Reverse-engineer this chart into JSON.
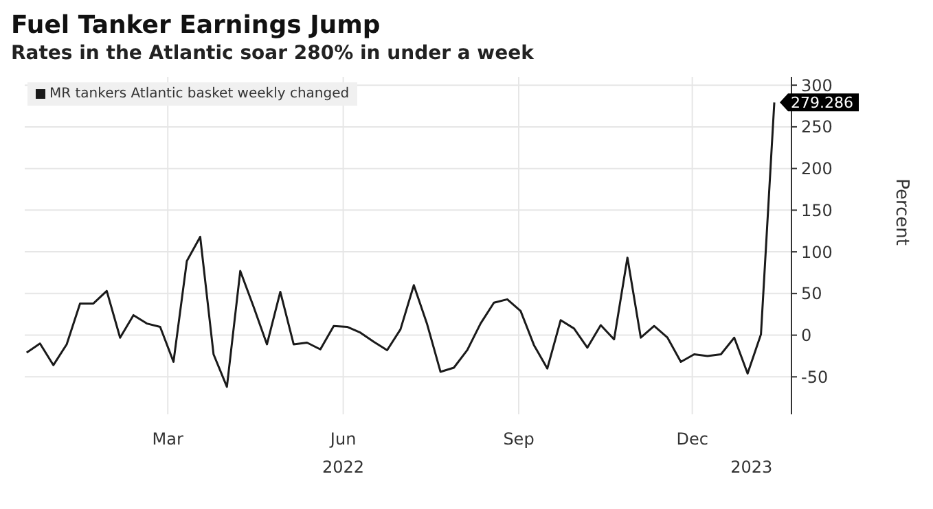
{
  "chart_data": {
    "type": "line",
    "title": "Fuel Tanker Earnings Jump",
    "subtitle": "Rates in the Atlantic soar 280% in under a week",
    "ylabel": "Percent",
    "x": [
      "2021-12-17",
      "2021-12-24",
      "2021-12-31",
      "2022-01-07",
      "2022-01-14",
      "2022-01-21",
      "2022-01-28",
      "2022-02-04",
      "2022-02-11",
      "2022-02-18",
      "2022-02-25",
      "2022-03-04",
      "2022-03-11",
      "2022-03-18",
      "2022-03-25",
      "2022-04-01",
      "2022-04-08",
      "2022-04-15",
      "2022-04-22",
      "2022-04-29",
      "2022-05-06",
      "2022-05-13",
      "2022-05-20",
      "2022-05-27",
      "2022-06-03",
      "2022-06-10",
      "2022-06-17",
      "2022-06-24",
      "2022-07-01",
      "2022-07-08",
      "2022-07-15",
      "2022-07-22",
      "2022-07-29",
      "2022-08-05",
      "2022-08-12",
      "2022-08-19",
      "2022-08-26",
      "2022-09-02",
      "2022-09-09",
      "2022-09-16",
      "2022-09-23",
      "2022-09-30",
      "2022-10-07",
      "2022-10-14",
      "2022-10-21",
      "2022-10-28",
      "2022-11-04",
      "2022-11-11",
      "2022-11-18",
      "2022-11-25",
      "2022-12-02",
      "2022-12-09",
      "2022-12-16",
      "2022-12-23",
      "2022-12-30",
      "2023-01-06",
      "2023-01-13"
    ],
    "series": [
      {
        "name": "MR tankers Atlantic basket weekly changed",
        "color": "#1a1a1a",
        "values": [
          -21,
          -10,
          -36,
          -11,
          38,
          38,
          53,
          -3,
          24,
          14,
          10,
          -32,
          89,
          118,
          -23,
          -62,
          77,
          34,
          -11,
          52,
          -11,
          -9,
          -17,
          11,
          10,
          3,
          -8,
          -18,
          7,
          60,
          13,
          -44,
          -39,
          -18,
          14,
          39,
          43,
          29,
          -12,
          -40,
          18,
          8,
          -15,
          12,
          -5,
          93,
          -3,
          11,
          -3,
          -32,
          -23,
          -25,
          -23,
          -3,
          -46,
          1,
          279.286
        ],
        "value_labels": [
          null,
          null,
          null,
          null,
          null,
          null,
          null,
          null,
          null,
          null,
          null,
          null,
          null,
          null,
          null,
          null,
          null,
          null,
          null,
          null,
          null,
          null,
          null,
          null,
          null,
          null,
          null,
          null,
          null,
          null,
          null,
          null,
          null,
          null,
          null,
          null,
          null,
          null,
          null,
          null,
          null,
          null,
          null,
          null,
          null,
          null,
          null,
          null,
          null,
          null,
          null,
          null,
          null,
          null,
          null,
          null,
          "279.286"
        ]
      }
    ],
    "xlim": [
      "2021-12-16",
      "2023-01-22"
    ],
    "xticks": [
      {
        "value": "2022-03-01",
        "label": "Mar"
      },
      {
        "value": "2022-06-01",
        "label": "Jun"
      },
      {
        "value": "2022-09-01",
        "label": "Sep"
      },
      {
        "value": "2022-12-01",
        "label": "Dec"
      }
    ],
    "x2lim": [
      "2021-12-16",
      "2023-01-22"
    ],
    "x2ticks": [
      {
        "value": "2022-06-01",
        "label": "2022"
      },
      {
        "value": "2023-01-01",
        "label": "2023"
      }
    ],
    "ylim": [
      -95,
      310
    ],
    "yticks": [
      -50,
      0,
      50,
      100,
      150,
      200,
      250,
      300
    ],
    "grid": true,
    "legend": "top left",
    "marker": "none",
    "line_style": "solid"
  }
}
